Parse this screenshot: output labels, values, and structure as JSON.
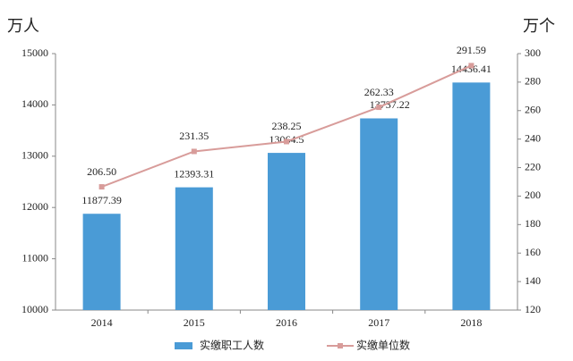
{
  "chart_data": {
    "type": "bar",
    "y_label": "万人",
    "y2_label": "万个",
    "categories": [
      "2014",
      "2015",
      "2016",
      "2017",
      "2018"
    ],
    "series": [
      {
        "name": "实缴职工人数",
        "type": "bar",
        "color": "#4a9bd6",
        "values": [
          11877.39,
          12393.31,
          13064.5,
          13737.22,
          14436.41
        ]
      },
      {
        "name": "实缴单位数",
        "type": "line",
        "axis": "y2",
        "color": "#d89c9a",
        "values": [
          206.5,
          231.35,
          238.25,
          262.33,
          291.59
        ],
        "value_labels": [
          "206.50",
          "231.35",
          "238.25",
          "262.33",
          "291.59"
        ]
      }
    ],
    "ylim": [
      10000,
      15000
    ],
    "yticks": [
      10000,
      11000,
      12000,
      13000,
      14000,
      15000
    ],
    "y2lim": [
      120,
      300
    ],
    "y2ticks": [
      120,
      140,
      160,
      180,
      200,
      220,
      240,
      260,
      280,
      300
    ],
    "legend": "bottom"
  }
}
